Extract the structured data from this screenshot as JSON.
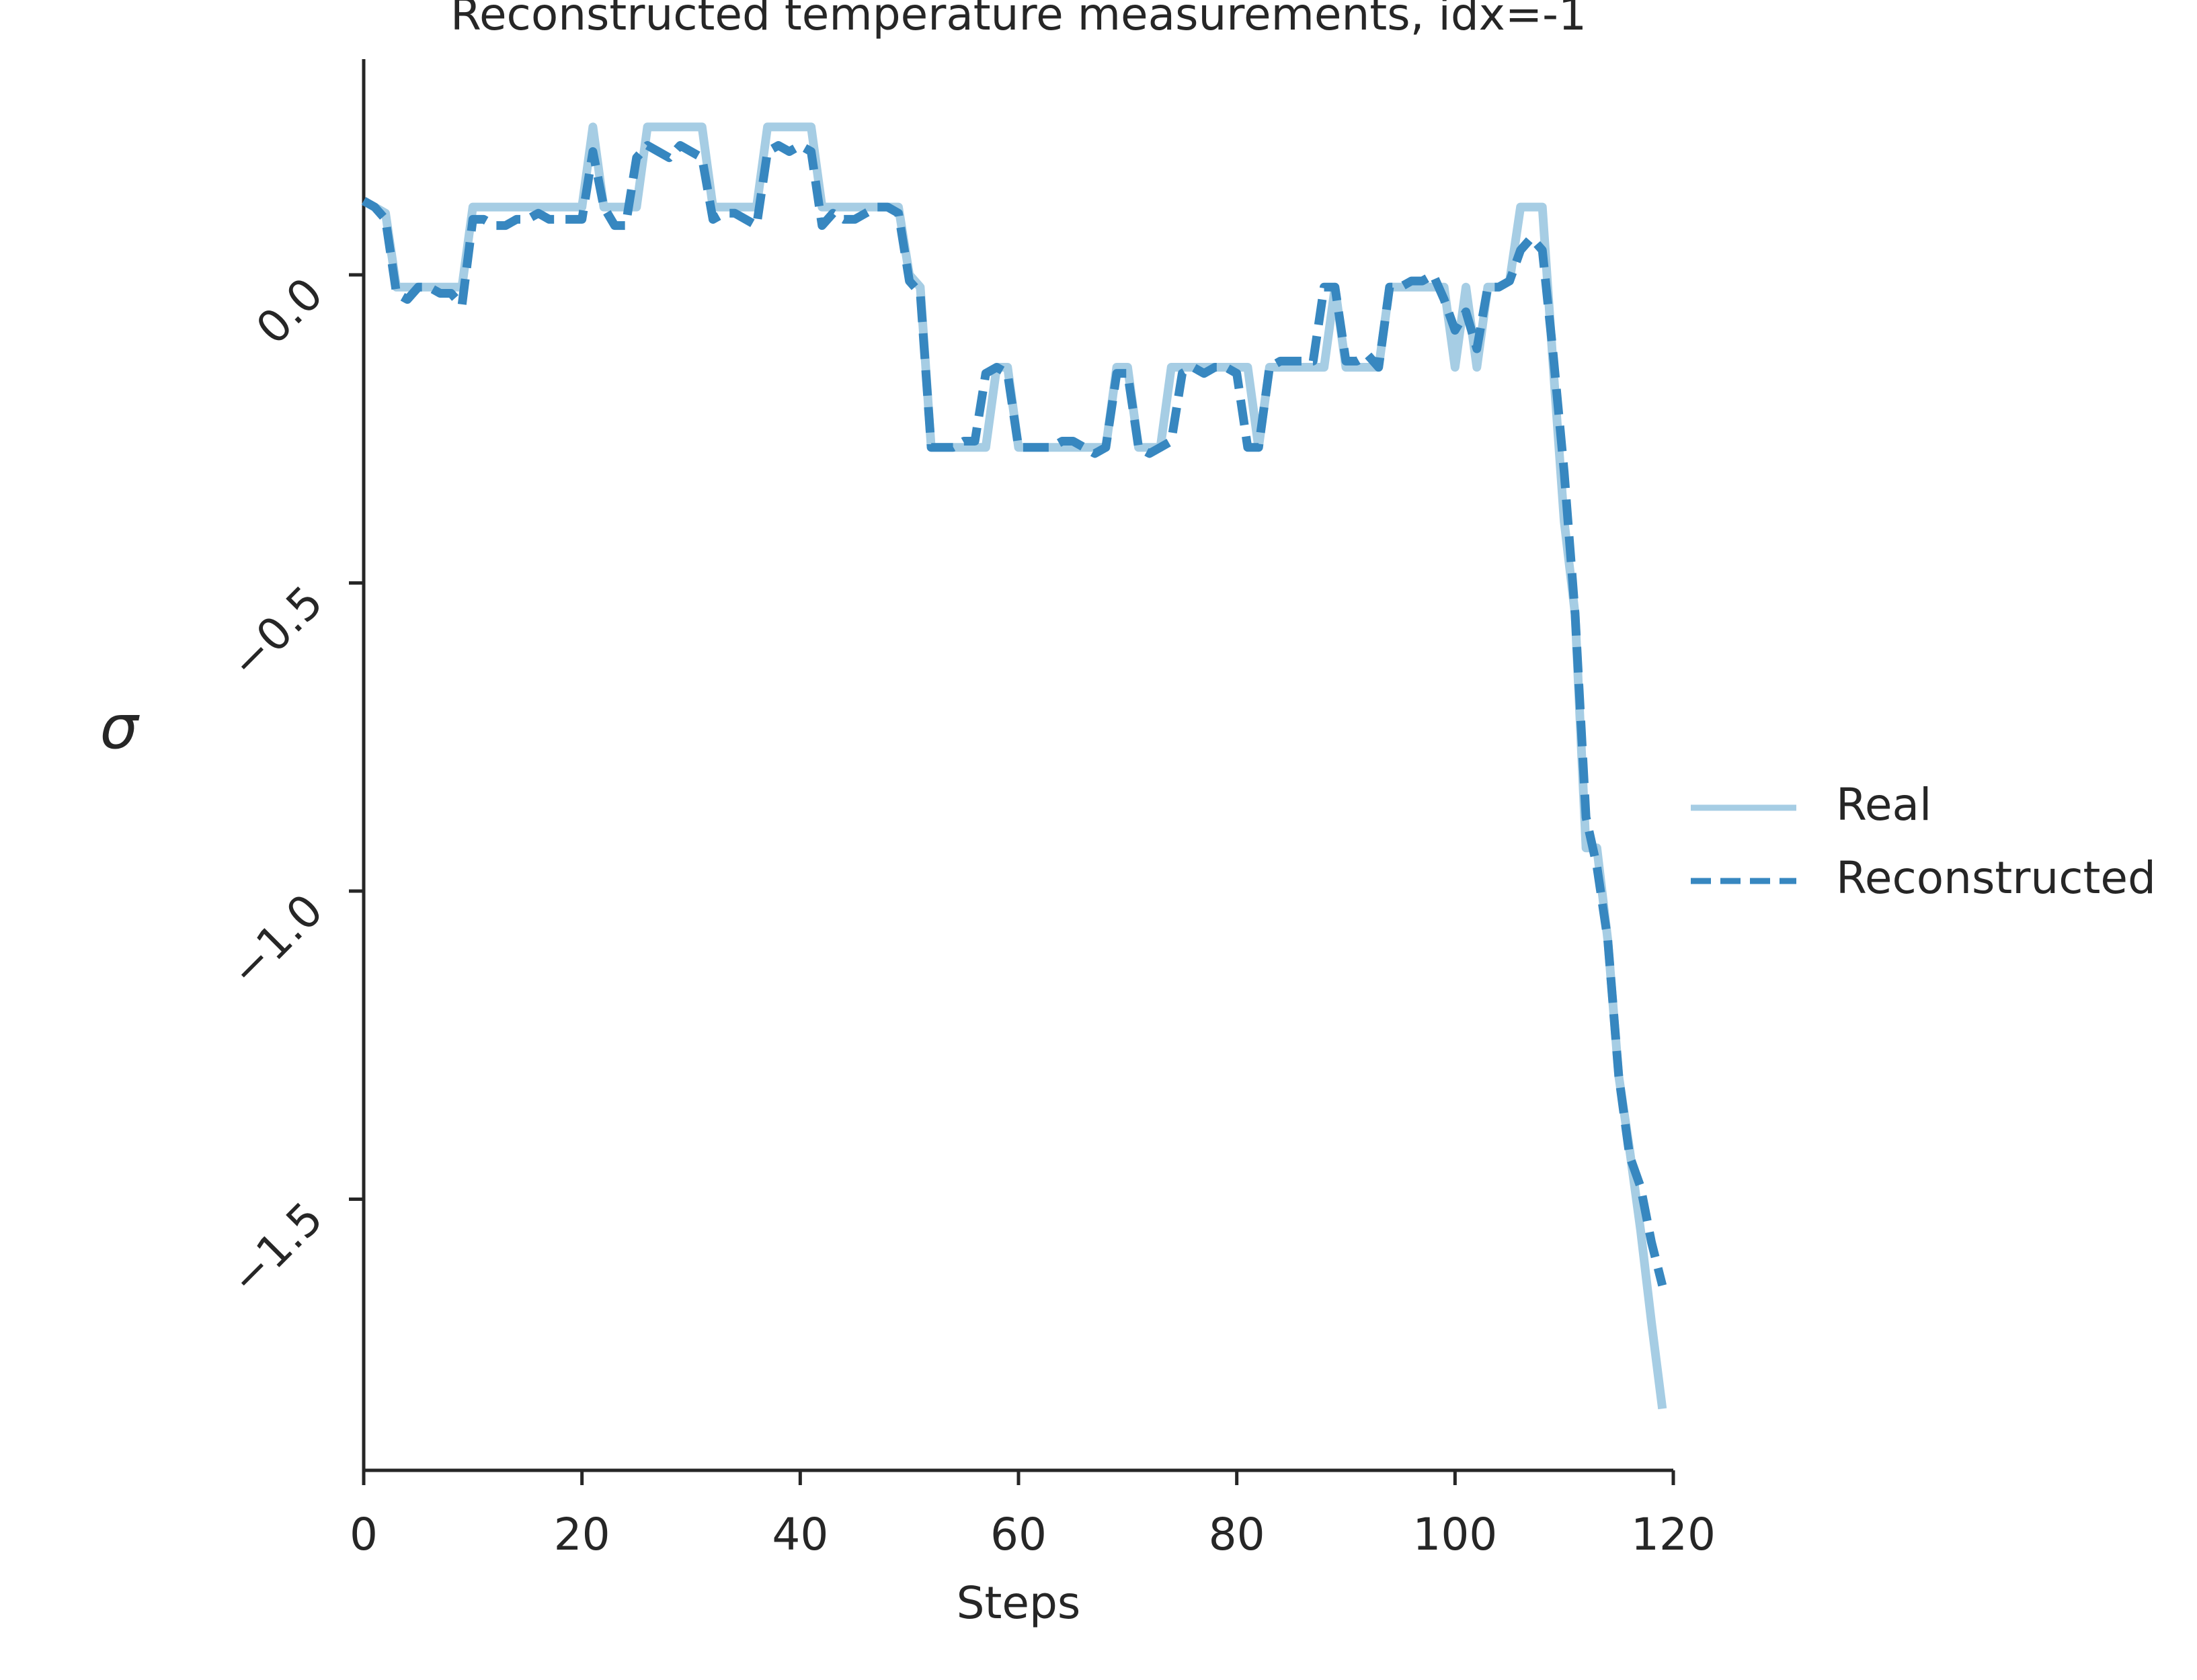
{
  "chart_data": {
    "type": "line",
    "title": "Reconstructed temperature measurements, idx=-1",
    "xlabel": "Steps",
    "ylabel": "σ",
    "x": [
      0,
      1,
      2,
      3,
      4,
      5,
      6,
      7,
      8,
      9,
      10,
      11,
      12,
      13,
      14,
      15,
      16,
      17,
      18,
      19,
      20,
      21,
      22,
      23,
      24,
      25,
      26,
      27,
      28,
      29,
      30,
      31,
      32,
      33,
      34,
      35,
      36,
      37,
      38,
      39,
      40,
      41,
      42,
      43,
      44,
      45,
      46,
      47,
      48,
      49,
      50,
      51,
      52,
      53,
      54,
      55,
      56,
      57,
      58,
      59,
      60,
      61,
      62,
      63,
      64,
      65,
      66,
      67,
      68,
      69,
      70,
      71,
      72,
      73,
      74,
      75,
      76,
      77,
      78,
      79,
      80,
      81,
      82,
      83,
      84,
      85,
      86,
      87,
      88,
      89,
      90,
      91,
      92,
      93,
      94,
      95,
      96,
      97,
      98,
      99,
      100,
      101,
      102,
      103,
      104,
      105,
      106,
      107,
      108,
      109,
      110,
      111,
      112,
      113,
      114,
      115,
      116,
      117,
      118,
      119
    ],
    "series": [
      {
        "name": "Real",
        "color": "#a6cde4",
        "dash": false,
        "values": [
          0.12,
          0.11,
          0.1,
          -0.02,
          -0.02,
          -0.02,
          -0.02,
          -0.02,
          -0.02,
          -0.02,
          0.11,
          0.11,
          0.11,
          0.11,
          0.11,
          0.11,
          0.11,
          0.11,
          0.11,
          0.11,
          0.11,
          0.24,
          0.11,
          0.11,
          0.11,
          0.11,
          0.24,
          0.24,
          0.24,
          0.24,
          0.24,
          0.24,
          0.11,
          0.11,
          0.11,
          0.11,
          0.11,
          0.24,
          0.24,
          0.24,
          0.24,
          0.24,
          0.11,
          0.11,
          0.11,
          0.11,
          0.11,
          0.11,
          0.11,
          0.11,
          0.0,
          -0.02,
          -0.28,
          -0.28,
          -0.28,
          -0.28,
          -0.28,
          -0.28,
          -0.15,
          -0.15,
          -0.28,
          -0.28,
          -0.28,
          -0.28,
          -0.28,
          -0.28,
          -0.28,
          -0.28,
          -0.28,
          -0.15,
          -0.15,
          -0.28,
          -0.28,
          -0.28,
          -0.15,
          -0.15,
          -0.15,
          -0.15,
          -0.15,
          -0.15,
          -0.15,
          -0.15,
          -0.28,
          -0.15,
          -0.15,
          -0.15,
          -0.15,
          -0.15,
          -0.15,
          -0.02,
          -0.15,
          -0.15,
          -0.15,
          -0.15,
          -0.02,
          -0.02,
          -0.02,
          -0.02,
          -0.02,
          -0.02,
          -0.15,
          -0.02,
          -0.15,
          -0.02,
          -0.02,
          -0.01,
          0.11,
          0.11,
          0.11,
          -0.15,
          -0.4,
          -0.55,
          -0.93,
          -0.93,
          -1.08,
          -1.3,
          -1.42,
          -1.55,
          -1.7,
          -1.84
        ]
      },
      {
        "name": "Reconstructed",
        "color": "#3787c0",
        "dash": true,
        "values": [
          0.12,
          0.11,
          0.09,
          -0.03,
          -0.04,
          -0.02,
          -0.02,
          -0.03,
          -0.03,
          -0.05,
          0.09,
          0.09,
          0.08,
          0.08,
          0.09,
          0.09,
          0.1,
          0.09,
          0.09,
          0.09,
          0.09,
          0.2,
          0.11,
          0.08,
          0.08,
          0.19,
          0.21,
          0.2,
          0.19,
          0.21,
          0.2,
          0.19,
          0.09,
          0.1,
          0.1,
          0.09,
          0.08,
          0.2,
          0.21,
          0.2,
          0.21,
          0.2,
          0.08,
          0.1,
          0.09,
          0.09,
          0.1,
          0.11,
          0.11,
          0.1,
          -0.01,
          -0.03,
          -0.28,
          -0.28,
          -0.28,
          -0.27,
          -0.27,
          -0.16,
          -0.15,
          -0.16,
          -0.28,
          -0.28,
          -0.28,
          -0.28,
          -0.27,
          -0.27,
          -0.28,
          -0.29,
          -0.28,
          -0.16,
          -0.16,
          -0.28,
          -0.29,
          -0.28,
          -0.27,
          -0.16,
          -0.15,
          -0.16,
          -0.15,
          -0.15,
          -0.16,
          -0.28,
          -0.28,
          -0.15,
          -0.14,
          -0.14,
          -0.14,
          -0.14,
          -0.02,
          -0.02,
          -0.14,
          -0.14,
          -0.13,
          -0.15,
          -0.02,
          -0.02,
          -0.01,
          -0.01,
          0.0,
          -0.04,
          -0.09,
          -0.06,
          -0.12,
          -0.02,
          -0.02,
          -0.01,
          0.04,
          0.06,
          0.04,
          -0.13,
          -0.32,
          -0.55,
          -0.88,
          -0.96,
          -1.08,
          -1.3,
          -1.43,
          -1.48,
          -1.57,
          -1.64
        ]
      }
    ],
    "xlim": [
      0,
      120
    ],
    "xticks": [
      0,
      20,
      40,
      60,
      80,
      100,
      120
    ],
    "ylim": [
      -1.94,
      0.35
    ],
    "yticks": [
      {
        "value": 0.0,
        "label": "0.0"
      },
      {
        "value": -0.5,
        "label": "−0.5"
      },
      {
        "value": -1.0,
        "label": "−1.0"
      },
      {
        "value": -1.5,
        "label": "−1.5"
      }
    ],
    "grid": false,
    "legend": "right"
  }
}
